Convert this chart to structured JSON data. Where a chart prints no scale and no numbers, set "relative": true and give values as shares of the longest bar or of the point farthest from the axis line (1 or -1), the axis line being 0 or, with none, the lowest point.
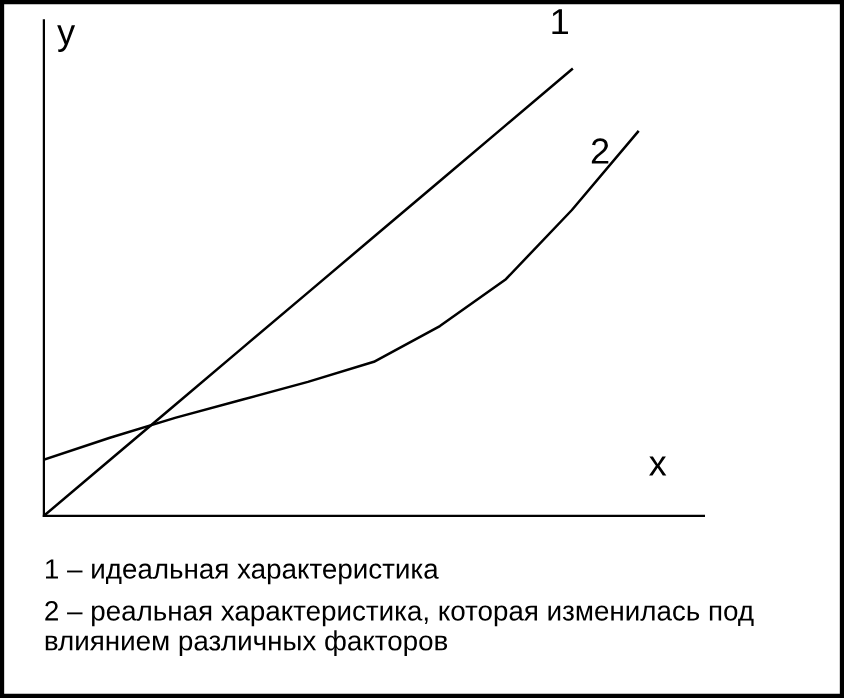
{
  "chart_data": {
    "type": "line",
    "relative": true,
    "xlabel": "x",
    "ylabel": "y",
    "legend": false,
    "categories": [
      null,
      null,
      null,
      null,
      null,
      null,
      null,
      null,
      null,
      null,
      null
    ],
    "series": [
      {
        "name": "1",
        "color": "#000000",
        "values": [
          0,
          0.125,
          0.25,
          0.375,
          0.5,
          0.625,
          0.75,
          0.875,
          1,
          null,
          null
        ]
      },
      {
        "name": "2",
        "color": "#000000",
        "values": [
          0.126,
          0.175,
          0.22,
          0.26,
          0.3,
          0.345,
          0.425,
          0.53,
          0.685,
          0.86,
          null
        ]
      }
    ],
    "annotations": [
      "1 – идеальная характеристика",
      "2 – реальная характеристика, которая изменилась под влиянием различных факторов"
    ]
  }
}
